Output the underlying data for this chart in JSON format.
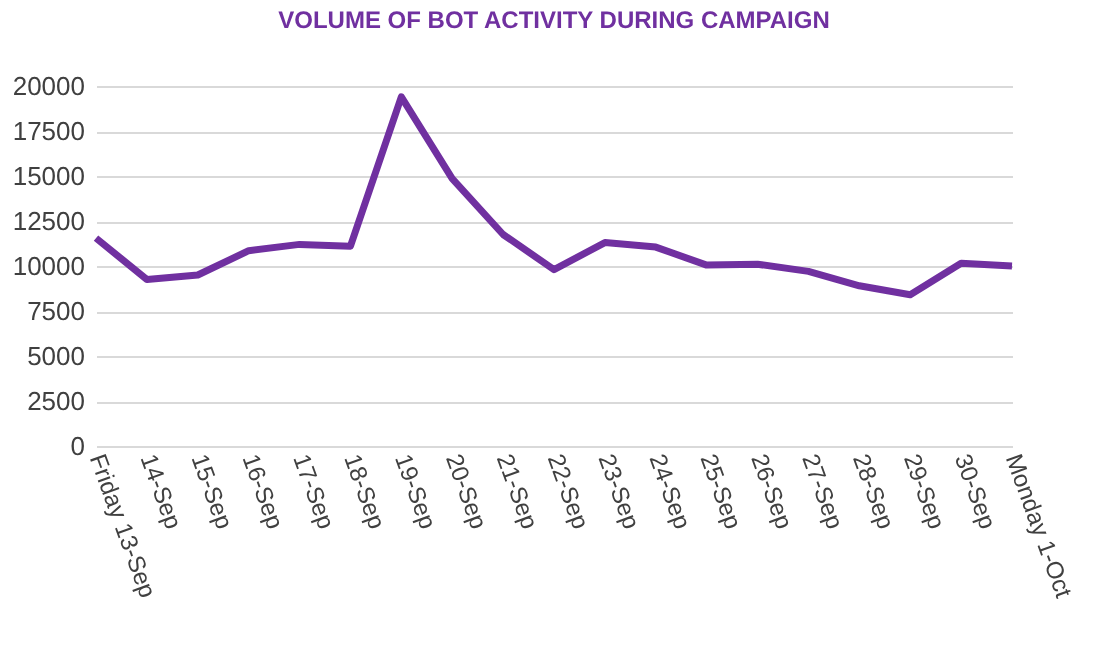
{
  "chart_data": {
    "type": "line",
    "title": "VOLUME OF BOT ACTIVITY DURING CAMPAIGN",
    "categories": [
      "Friday 13-Sep",
      "14-Sep",
      "15-Sep",
      "16-Sep",
      "17-Sep",
      "18-Sep",
      "19-Sep",
      "20-Sep",
      "21-Sep",
      "22-Sep",
      "23-Sep",
      "24-Sep",
      "25-Sep",
      "26-Sep",
      "27-Sep",
      "28-Sep",
      "29-Sep",
      "30-Sep",
      "Monday 1-Oct"
    ],
    "series": [
      {
        "color": "#7030a0",
        "values": [
          11550,
          9250,
          9500,
          10850,
          11200,
          11100,
          19400,
          14850,
          11750,
          9800,
          11300,
          11050,
          10050,
          10100,
          9700,
          8900,
          8400,
          10150,
          10000
        ]
      }
    ],
    "ylim": [
      0,
      20000
    ],
    "yticks": [
      0,
      2500,
      5000,
      7500,
      10000,
      12500,
      15000,
      17500,
      20000
    ],
    "grid": "y",
    "legend": false,
    "marker": "none",
    "line_style": "solid"
  }
}
